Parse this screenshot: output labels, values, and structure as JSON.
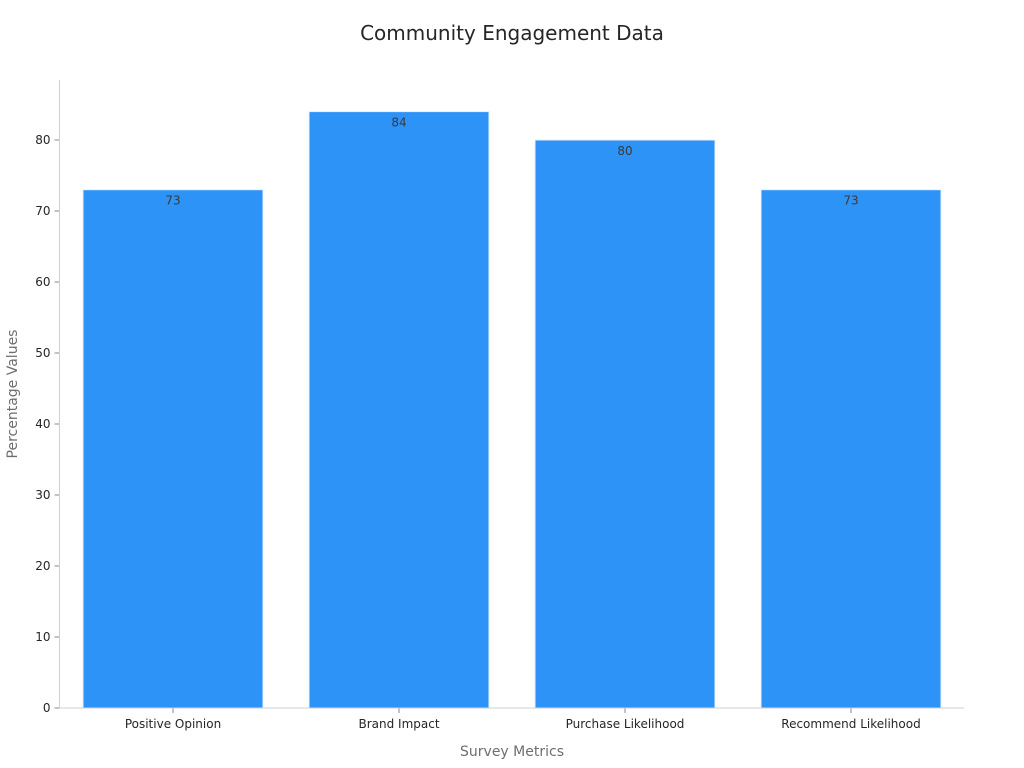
{
  "chart_data": {
    "type": "bar",
    "title": "Community Engagement Data",
    "xlabel": "Survey Metrics",
    "ylabel": "Percentage Values",
    "categories": [
      "Positive Opinion",
      "Brand Impact",
      "Purchase Likelihood",
      "Recommend Likelihood"
    ],
    "values": [
      73,
      84,
      80,
      73
    ],
    "ylim": [
      0,
      88.5
    ],
    "yticks": [
      0,
      10,
      20,
      30,
      40,
      50,
      60,
      70,
      80
    ],
    "grid": false,
    "bar_color": "#2e93f7",
    "bar_edge_color": "#e6f0fb"
  }
}
